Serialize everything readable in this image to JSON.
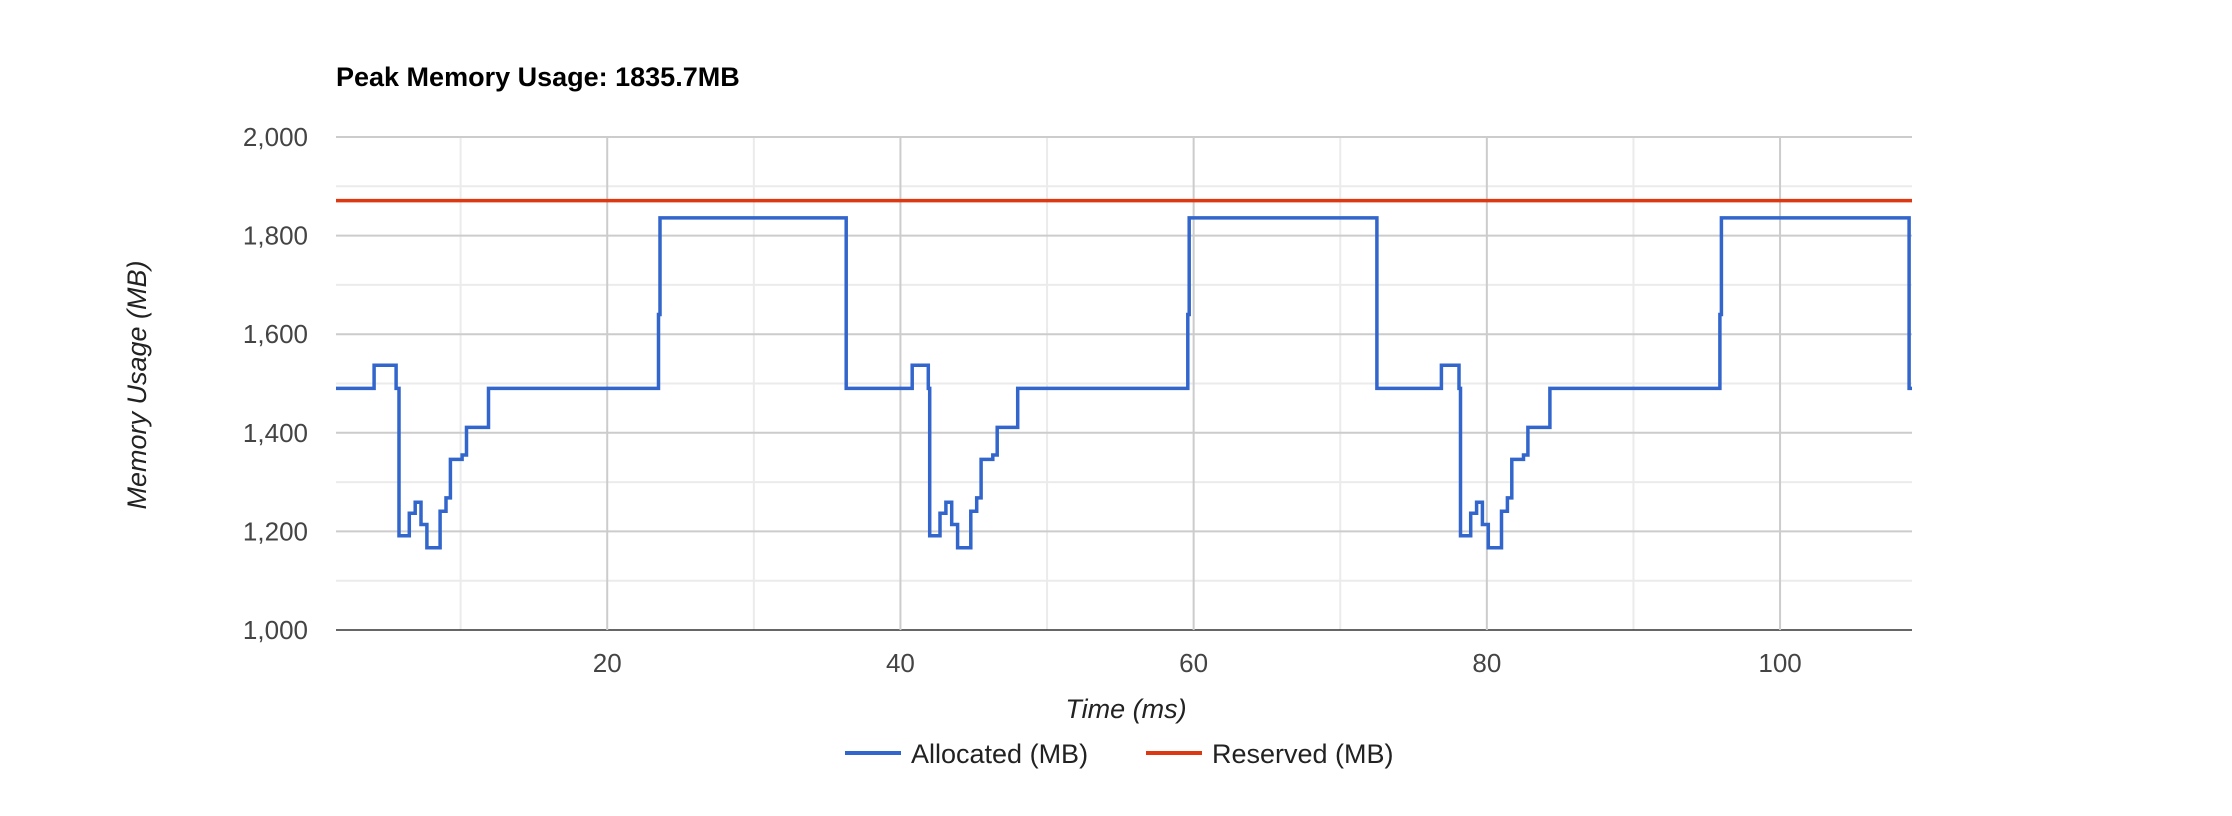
{
  "chart_data": {
    "type": "line",
    "title": "Peak Memory Usage: 1835.7MB",
    "xlabel": "Time (ms)",
    "ylabel": "Memory Usage (MB)",
    "xlim": [
      1.5,
      109
    ],
    "ylim": [
      1000,
      2000
    ],
    "x_ticks": [
      20,
      40,
      60,
      80,
      100
    ],
    "x_tick_labels": [
      "20",
      "40",
      "60",
      "80",
      "100"
    ],
    "y_ticks": [
      1000,
      1200,
      1400,
      1600,
      1800,
      2000
    ],
    "y_tick_labels": [
      "1,000",
      "1,200",
      "1,400",
      "1,600",
      "1,800",
      "2,000"
    ],
    "grid": true,
    "legend_position": "bottom",
    "series": [
      {
        "name": "Allocated (MB)",
        "color": "#3366cc",
        "step": true,
        "points": [
          [
            1.5,
            1490
          ],
          [
            4.1,
            1490
          ],
          [
            4.1,
            1537
          ],
          [
            5.6,
            1537
          ],
          [
            5.6,
            1490
          ],
          [
            5.8,
            1490
          ],
          [
            5.8,
            1191
          ],
          [
            6.5,
            1191
          ],
          [
            6.5,
            1237
          ],
          [
            6.9,
            1237
          ],
          [
            6.9,
            1259
          ],
          [
            7.3,
            1259
          ],
          [
            7.3,
            1214
          ],
          [
            7.7,
            1214
          ],
          [
            7.7,
            1167
          ],
          [
            8.6,
            1167
          ],
          [
            8.6,
            1241
          ],
          [
            9.0,
            1241
          ],
          [
            9.0,
            1268
          ],
          [
            9.3,
            1268
          ],
          [
            9.3,
            1346
          ],
          [
            10.1,
            1346
          ],
          [
            10.1,
            1355
          ],
          [
            10.4,
            1355
          ],
          [
            10.4,
            1411
          ],
          [
            11.9,
            1411
          ],
          [
            11.9,
            1490
          ],
          [
            23.5,
            1490
          ],
          [
            23.5,
            1640
          ],
          [
            23.6,
            1640
          ],
          [
            23.6,
            1836
          ],
          [
            36.3,
            1836
          ],
          [
            36.3,
            1490
          ],
          [
            39.3,
            1490
          ],
          [
            40.8,
            1490
          ],
          [
            40.8,
            1537
          ],
          [
            41.9,
            1537
          ],
          [
            41.9,
            1490
          ],
          [
            42.0,
            1490
          ],
          [
            42.0,
            1191
          ],
          [
            42.7,
            1191
          ],
          [
            42.7,
            1237
          ],
          [
            43.1,
            1237
          ],
          [
            43.1,
            1259
          ],
          [
            43.5,
            1259
          ],
          [
            43.5,
            1214
          ],
          [
            43.9,
            1214
          ],
          [
            43.9,
            1167
          ],
          [
            44.8,
            1167
          ],
          [
            44.8,
            1241
          ],
          [
            45.2,
            1241
          ],
          [
            45.2,
            1268
          ],
          [
            45.5,
            1268
          ],
          [
            45.5,
            1346
          ],
          [
            46.3,
            1346
          ],
          [
            46.3,
            1355
          ],
          [
            46.6,
            1355
          ],
          [
            46.6,
            1411
          ],
          [
            48.0,
            1411
          ],
          [
            48.0,
            1490
          ],
          [
            59.6,
            1490
          ],
          [
            59.6,
            1640
          ],
          [
            59.7,
            1640
          ],
          [
            59.7,
            1836
          ],
          [
            72.5,
            1836
          ],
          [
            72.5,
            1490
          ],
          [
            75.5,
            1490
          ],
          [
            76.9,
            1490
          ],
          [
            76.9,
            1537
          ],
          [
            78.1,
            1537
          ],
          [
            78.1,
            1490
          ],
          [
            78.2,
            1490
          ],
          [
            78.2,
            1191
          ],
          [
            78.9,
            1191
          ],
          [
            78.9,
            1237
          ],
          [
            79.3,
            1237
          ],
          [
            79.3,
            1259
          ],
          [
            79.7,
            1259
          ],
          [
            79.7,
            1214
          ],
          [
            80.1,
            1214
          ],
          [
            80.1,
            1167
          ],
          [
            81.0,
            1167
          ],
          [
            81.0,
            1241
          ],
          [
            81.4,
            1241
          ],
          [
            81.4,
            1268
          ],
          [
            81.7,
            1268
          ],
          [
            81.7,
            1346
          ],
          [
            82.5,
            1346
          ],
          [
            82.5,
            1355
          ],
          [
            82.8,
            1355
          ],
          [
            82.8,
            1411
          ],
          [
            84.3,
            1411
          ],
          [
            84.3,
            1490
          ],
          [
            95.9,
            1490
          ],
          [
            95.9,
            1640
          ],
          [
            96.0,
            1640
          ],
          [
            96.0,
            1836
          ],
          [
            108.8,
            1836
          ],
          [
            108.8,
            1490
          ],
          [
            109,
            1490
          ]
        ]
      },
      {
        "name": "Reserved (MB)",
        "color": "#dc3912",
        "step": false,
        "points": [
          [
            1.5,
            1871
          ],
          [
            109,
            1871
          ]
        ]
      }
    ]
  }
}
